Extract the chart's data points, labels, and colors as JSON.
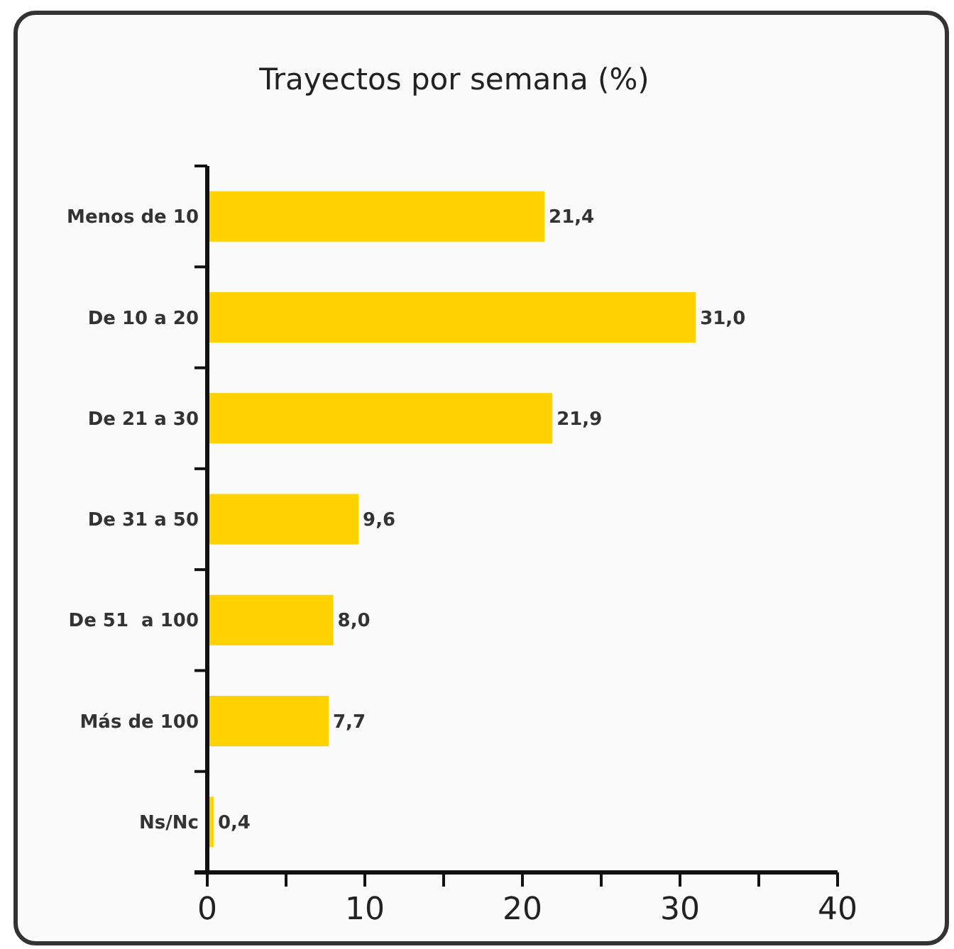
{
  "chart_data": {
    "type": "bar",
    "orientation": "horizontal",
    "title": "Trayectos por semana (%)",
    "categories": [
      "Menos de 10",
      "De 10 a 20",
      "De 21 a 30",
      "De 31 a 50",
      "De 51  a 100",
      "Más de 100",
      "Ns/Nc"
    ],
    "values": [
      21.4,
      31.0,
      21.9,
      9.6,
      8.0,
      7.7,
      0.4
    ],
    "value_labels": [
      "21,4",
      "31,0",
      "21,9",
      "9,6",
      "8,0",
      "7,7",
      "0,4"
    ],
    "color": "#ffd200",
    "xlim": [
      0,
      40
    ],
    "xticks": [
      0,
      {
        "value": 5,
        "label": null
      },
      10,
      {
        "value": 15,
        "label": null
      },
      20,
      {
        "value": 25,
        "label": null
      },
      30,
      {
        "value": 35,
        "label": null
      },
      40
    ],
    "grid": false
  }
}
